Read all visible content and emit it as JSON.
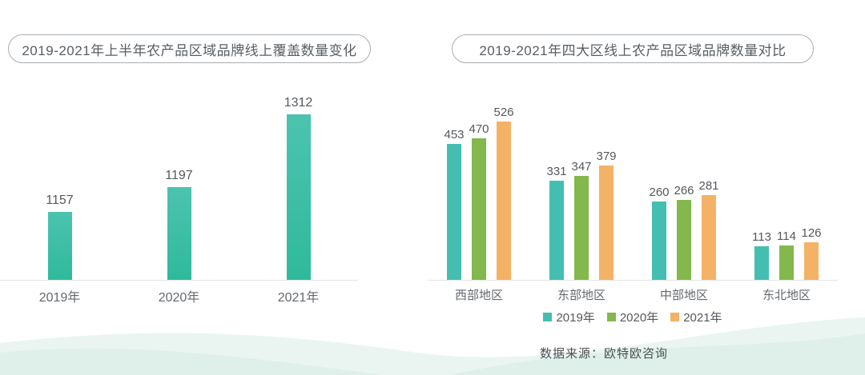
{
  "chart_data": [
    {
      "type": "bar",
      "title": "2019-2021年上半年农产品区域品牌线上覆盖数量变化",
      "categories": [
        "2019年",
        "2020年",
        "2021年"
      ],
      "values": [
        1157,
        1197,
        1312
      ],
      "value_labels": true,
      "ylim": [
        1050,
        1350
      ],
      "grid": false,
      "bar_color": "#3cbfa3"
    },
    {
      "type": "bar",
      "title": "2019-2021年四大区线上农产品区域品牌数量对比",
      "categories": [
        "西部地区",
        "东部地区",
        "中部地区",
        "东北地区"
      ],
      "series": [
        {
          "name": "2019年",
          "color": "#45beb2",
          "values": [
            453,
            331,
            260,
            113
          ]
        },
        {
          "name": "2020年",
          "color": "#82b84c",
          "values": [
            470,
            347,
            266,
            114
          ]
        },
        {
          "name": "2021年",
          "color": "#f4b266",
          "values": [
            526,
            379,
            281,
            126
          ]
        }
      ],
      "value_labels": true,
      "ylim": [
        0,
        585
      ],
      "grid": false,
      "legend_position": "bottom"
    }
  ],
  "footer": {
    "source": "数据来源：欧特欧咨询"
  },
  "colors": {
    "left_bar": "#3cbfa3",
    "teal": "#45beb2",
    "green": "#82b84c",
    "orange": "#f4b266",
    "axis_line": "#e3e4e4",
    "wave_light": "#eaf5f1",
    "wave_mid": "#dceee7"
  }
}
